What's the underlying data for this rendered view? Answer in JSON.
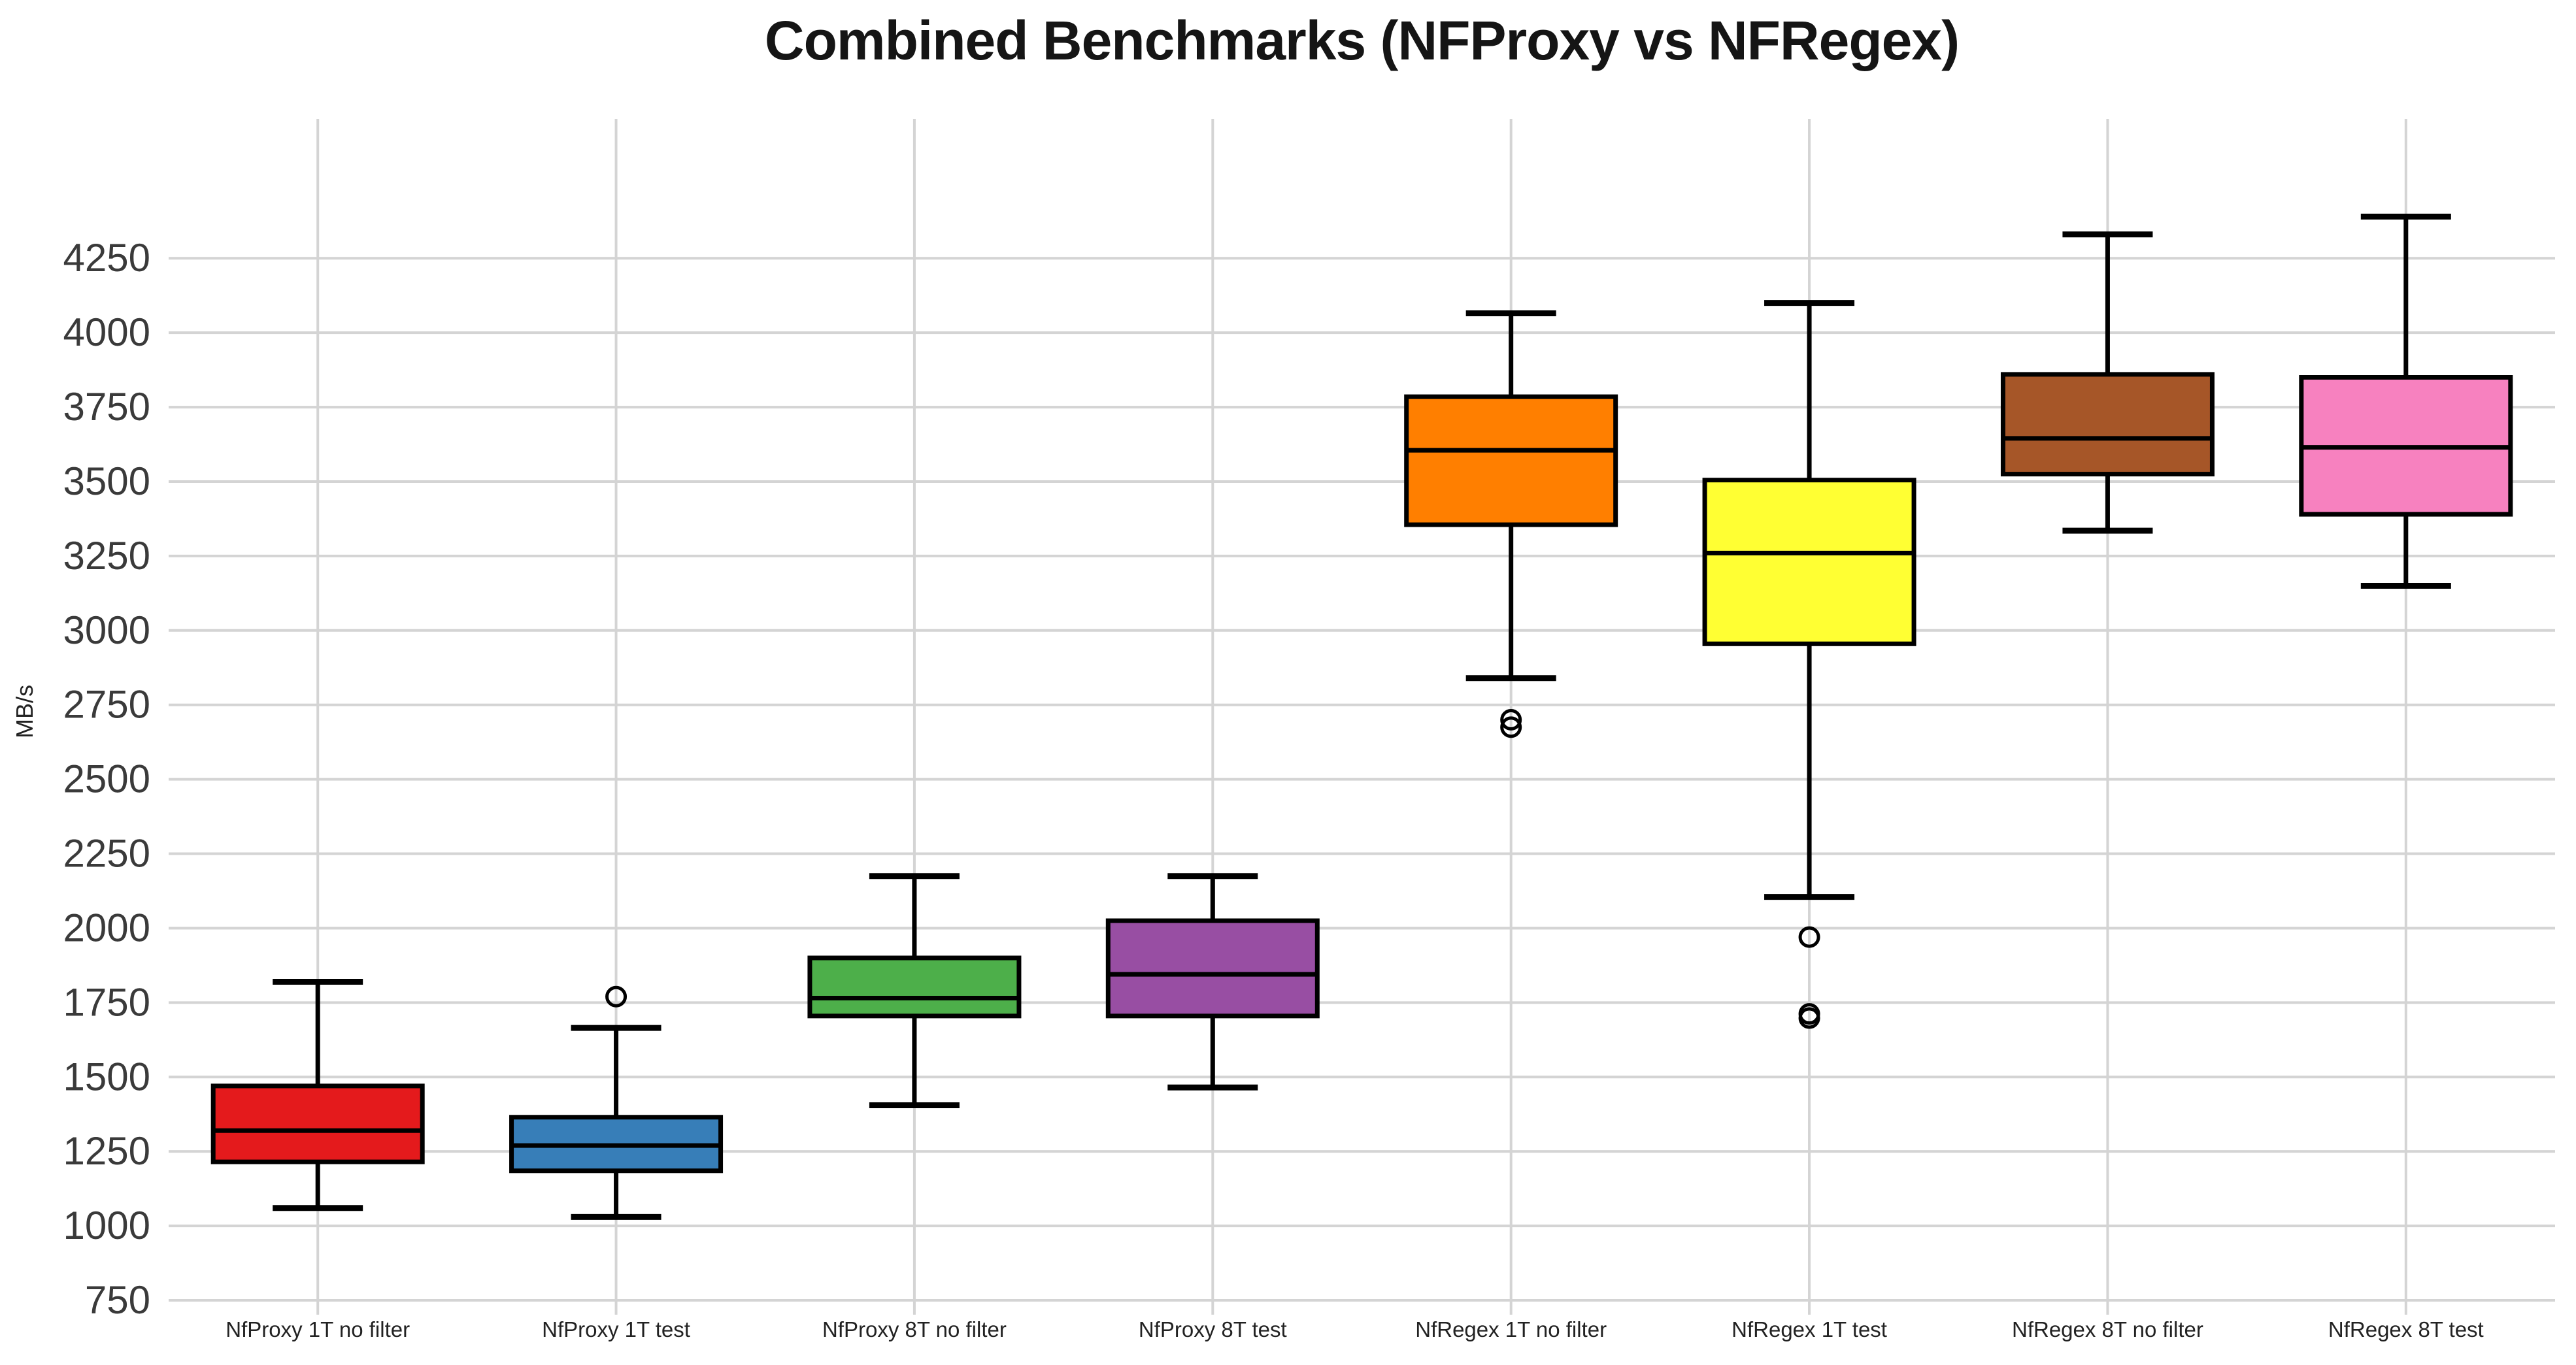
{
  "chart_data": {
    "type": "boxplot",
    "title": "Combined Benchmarks (NFProxy vs NFRegex)",
    "xlabel": "",
    "ylabel": "MB/s",
    "ylim": [
      750,
      4718
    ],
    "y_ticks": [
      750,
      1000,
      1250,
      1500,
      1750,
      2000,
      2250,
      2500,
      2750,
      3000,
      3250,
      3500,
      3750,
      4000,
      4250
    ],
    "grid": true,
    "legend_position": "none",
    "categories": [
      "NfProxy 1T no filter",
      "NfProxy 1T test",
      "NfProxy 8T no filter",
      "NfProxy 8T test",
      "NfRegex 1T no filter",
      "NfRegex 1T test",
      "NfRegex 8T no filter",
      "NfRegex 8T test"
    ],
    "series": [
      {
        "label": "NfProxy 1T no filter",
        "color": "#e41a1c",
        "min": 1060,
        "q1": 1215,
        "median": 1320,
        "q3": 1470,
        "max": 1820,
        "outliers": []
      },
      {
        "label": "NfProxy 1T test",
        "color": "#377eb8",
        "min": 1030,
        "q1": 1185,
        "median": 1270,
        "q3": 1365,
        "max": 1665,
        "outliers": [
          1770
        ]
      },
      {
        "label": "NfProxy 8T no filter",
        "color": "#4daf4a",
        "min": 1405,
        "q1": 1705,
        "median": 1765,
        "q3": 1900,
        "max": 2175,
        "outliers": []
      },
      {
        "label": "NfProxy 8T test",
        "color": "#984ea3",
        "min": 1465,
        "q1": 1705,
        "median": 1845,
        "q3": 2025,
        "max": 2175,
        "outliers": []
      },
      {
        "label": "NfRegex 1T no filter",
        "color": "#ff7f00",
        "min": 2840,
        "q1": 3355,
        "median": 3605,
        "q3": 3785,
        "max": 4065,
        "outliers": [
          2700,
          2675
        ]
      },
      {
        "label": "NfRegex 1T test",
        "color": "#ffff33",
        "min": 2105,
        "q1": 2955,
        "median": 3260,
        "q3": 3505,
        "max": 4100,
        "outliers": [
          1970,
          1712,
          1698
        ]
      },
      {
        "label": "NfRegex 8T no filter",
        "color": "#a65628",
        "min": 3335,
        "q1": 3525,
        "median": 3645,
        "q3": 3860,
        "max": 4330,
        "outliers": []
      },
      {
        "label": "NfRegex 8T test",
        "color": "#f781bf",
        "min": 3150,
        "q1": 3390,
        "median": 3615,
        "q3": 3850,
        "max": 4390,
        "outliers": []
      }
    ]
  },
  "style_colors": {
    "grid": "#d4d4d4",
    "axis_tick_text": "#3a3a3a",
    "x_tick_text": "#222222",
    "box_stroke": "#000000",
    "title_text": "#151515"
  }
}
